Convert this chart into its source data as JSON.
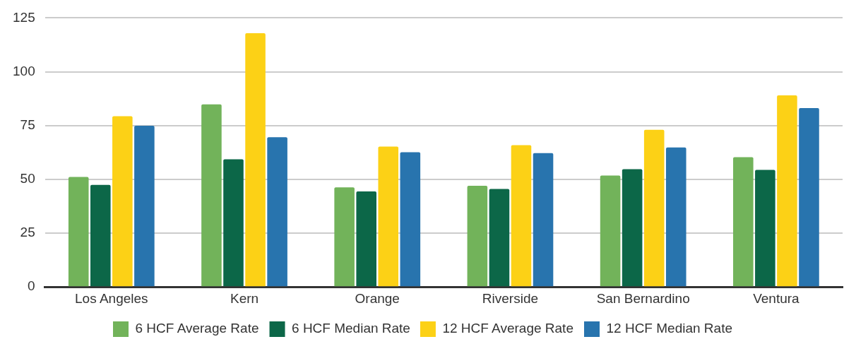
{
  "chart_data": {
    "type": "bar",
    "categories": [
      "Los Angeles",
      "Kern",
      "Orange",
      "Riverside",
      "San Bernardino",
      "Ventura"
    ],
    "series": [
      {
        "name": "6 HCF Average Rate",
        "color": "#72b35a",
        "values": [
          51.1,
          84.8,
          46.3,
          47.0,
          51.8,
          60.3
        ]
      },
      {
        "name": "6 HCF Median Rate",
        "color": "#0c6748",
        "values": [
          47.4,
          59.3,
          44.4,
          45.5,
          54.7,
          54.4
        ]
      },
      {
        "name": "12 HCF Average Rate",
        "color": "#fcd116",
        "values": [
          79.3,
          117.9,
          65.2,
          65.9,
          73.0,
          89.0
        ]
      },
      {
        "name": "12 HCF Median Rate",
        "color": "#2874ae",
        "values": [
          74.9,
          69.6,
          62.6,
          62.2,
          64.8,
          83.1
        ]
      }
    ],
    "ylim": [
      0,
      125
    ],
    "yticks": [
      0,
      25,
      50,
      75,
      100,
      125
    ],
    "grid": "y",
    "legend": "bottom"
  }
}
